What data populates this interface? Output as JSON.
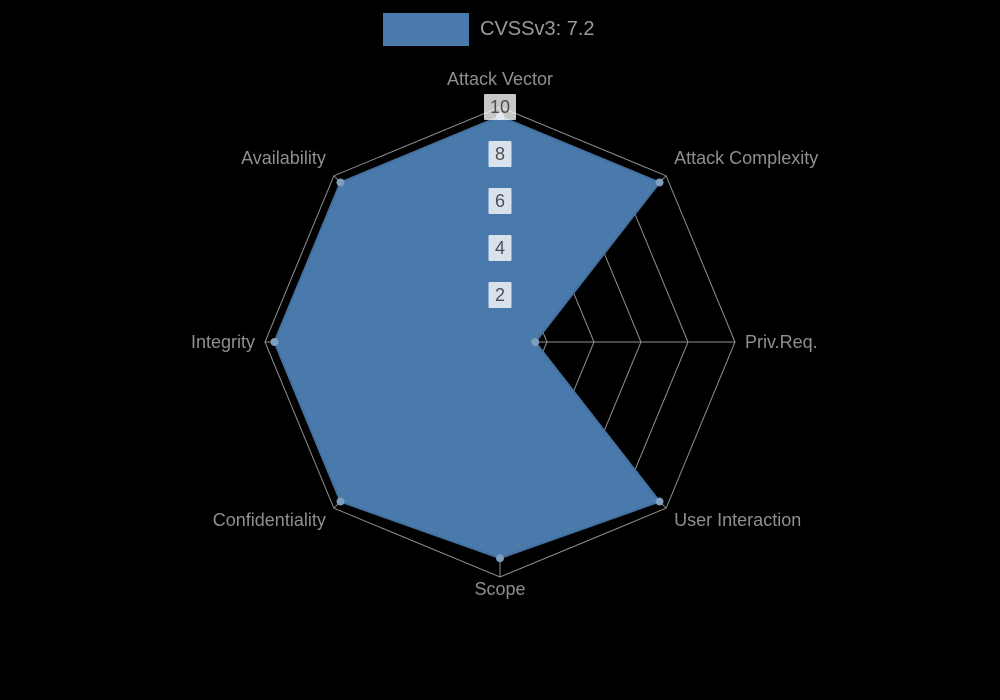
{
  "legend": {
    "label": "CVSSv3: 7.2"
  },
  "colors": {
    "background": "#000000",
    "series_fill": "#4a7aab",
    "series_stroke": "#44719f",
    "marker": "#7e9fc0",
    "grid": "#a0a0a0",
    "axis_label": "#8f8f8f",
    "legend_text": "#9a9a9a",
    "tick_text": "#4f4f4f",
    "tick_backdrop": "rgba(255,255,255,0.78)"
  },
  "chart_data": {
    "type": "radar",
    "title": "CVSSv3: 7.2",
    "categories": [
      "Attack Vector",
      "Attack Complexity",
      "Priv.Req.",
      "User Interaction",
      "Scope",
      "Confidentiality",
      "Integrity",
      "Availability"
    ],
    "series": [
      {
        "name": "CVSSv3: 7.2",
        "values": [
          9.6,
          9.6,
          1.5,
          9.6,
          9.2,
          9.6,
          9.6,
          9.6
        ]
      }
    ],
    "ticks": [
      2,
      4,
      6,
      8,
      10
    ],
    "axis_range": [
      0,
      10
    ],
    "grid_shape": "polygon",
    "grid_levels": 5,
    "legend_position": "top",
    "start_axis": "top",
    "direction": "clockwise"
  }
}
